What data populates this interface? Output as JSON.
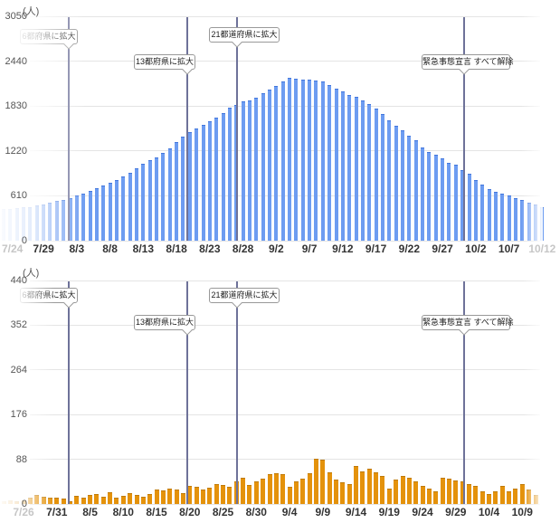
{
  "styles": {
    "grid_color": "#e4e4e4",
    "y_label_color": "#555555",
    "x_label_color": "#333333",
    "faded_label_color": "#c6c6c6",
    "marker_line_color": "#6e7299",
    "annotation_border_color": "#999999",
    "annotation_text_color": "#222222",
    "background_color": "#ffffff"
  },
  "chart_data": [
    {
      "type": "bar",
      "unit": "(人)",
      "ylim": [
        0,
        3050
      ],
      "y_ticks": [
        0,
        610,
        1220,
        1830,
        2440,
        3050
      ],
      "grid": true,
      "bar_color": "#6d9cf1",
      "bar_edge_color": "#4377dd",
      "x_tick_labels": [
        "7/24",
        "7/29",
        "8/3",
        "8/8",
        "8/13",
        "8/18",
        "8/23",
        "8/28",
        "9/2",
        "9/7",
        "9/12",
        "9/17",
        "9/22",
        "9/27",
        "10/2",
        "10/7",
        "10/12"
      ],
      "faded_tick_indexes": [
        0,
        16
      ],
      "categories": [
        "7/23",
        "7/24",
        "7/25",
        "7/26",
        "7/27",
        "7/28",
        "7/29",
        "7/30",
        "7/31",
        "8/1",
        "8/2",
        "8/3",
        "8/4",
        "8/5",
        "8/6",
        "8/7",
        "8/8",
        "8/9",
        "8/10",
        "8/11",
        "8/12",
        "8/13",
        "8/14",
        "8/15",
        "8/16",
        "8/17",
        "8/18",
        "8/19",
        "8/20",
        "8/21",
        "8/22",
        "8/23",
        "8/24",
        "8/25",
        "8/26",
        "8/27",
        "8/28",
        "8/29",
        "8/30",
        "8/31",
        "9/1",
        "9/2",
        "9/3",
        "9/4",
        "9/5",
        "9/6",
        "9/7",
        "9/8",
        "9/9",
        "9/10",
        "9/11",
        "9/12",
        "9/13",
        "9/14",
        "9/15",
        "9/16",
        "9/17",
        "9/18",
        "9/19",
        "9/20",
        "9/21",
        "9/22",
        "9/23",
        "9/24",
        "9/25",
        "9/26",
        "9/27",
        "9/28",
        "9/29",
        "9/30",
        "10/1",
        "10/2",
        "10/3",
        "10/4",
        "10/5",
        "10/6",
        "10/7",
        "10/8",
        "10/9",
        "10/10",
        "10/11",
        "10/12"
      ],
      "values": [
        430,
        435,
        442,
        450,
        460,
        475,
        495,
        515,
        540,
        557,
        572,
        615,
        640,
        672,
        715,
        755,
        790,
        825,
        870,
        925,
        980,
        1040,
        1090,
        1135,
        1190,
        1255,
        1340,
        1415,
        1470,
        1520,
        1575,
        1620,
        1670,
        1740,
        1805,
        1845,
        1890,
        1912,
        1945,
        2000,
        2050,
        2100,
        2165,
        2210,
        2205,
        2190,
        2195,
        2175,
        2160,
        2110,
        2065,
        2030,
        1985,
        1950,
        1905,
        1858,
        1790,
        1725,
        1640,
        1565,
        1500,
        1430,
        1360,
        1262,
        1205,
        1165,
        1115,
        1062,
        1030,
        965,
        910,
        830,
        760,
        700,
        665,
        640,
        610,
        580,
        550,
        520,
        490,
        460
      ],
      "annotations": [
        {
          "label": "6都府県に拡大",
          "line_x": 76,
          "box": {
            "x": 22,
            "y": 32,
            "w": 64
          },
          "pointer_x": 76
        },
        {
          "label": "13都府県に拡大",
          "line_x": 207,
          "box": {
            "x": 148,
            "y": 60,
            "w": 68
          },
          "pointer_x": 207
        },
        {
          "label": "21都道府県に拡大",
          "line_x": 262,
          "box": {
            "x": 231,
            "y": 30,
            "w": 78
          },
          "pointer_x": 262
        },
        {
          "label": "緊急事態宣言 すべて解除",
          "line_x": 513,
          "box": {
            "x": 466,
            "y": 60,
            "w": 98
          },
          "pointer_x": 513
        }
      ]
    },
    {
      "type": "bar",
      "unit": "(人)",
      "ylim": [
        0,
        440
      ],
      "y_ticks": [
        0,
        88,
        176,
        264,
        352,
        440
      ],
      "grid": true,
      "bar_color": "#e4920b",
      "bar_edge_color": "#bf7a06",
      "x_tick_labels": [
        "7/26",
        "7/31",
        "8/5",
        "8/10",
        "8/15",
        "8/20",
        "8/25",
        "8/30",
        "9/4",
        "9/9",
        "9/14",
        "9/19",
        "9/24",
        "9/29",
        "10/4",
        "10/9"
      ],
      "faded_tick_indexes": [
        0
      ],
      "categories": [
        "7/23",
        "7/24",
        "7/25",
        "7/26",
        "7/27",
        "7/28",
        "7/29",
        "7/30",
        "7/31",
        "8/1",
        "8/2",
        "8/3",
        "8/4",
        "8/5",
        "8/6",
        "8/7",
        "8/8",
        "8/9",
        "8/10",
        "8/11",
        "8/12",
        "8/13",
        "8/14",
        "8/15",
        "8/16",
        "8/17",
        "8/18",
        "8/19",
        "8/20",
        "8/21",
        "8/22",
        "8/23",
        "8/24",
        "8/25",
        "8/26",
        "8/27",
        "8/28",
        "8/29",
        "8/30",
        "8/31",
        "9/1",
        "9/2",
        "9/3",
        "9/4",
        "9/5",
        "9/6",
        "9/7",
        "9/8",
        "9/9",
        "9/10",
        "9/11",
        "9/12",
        "9/13",
        "9/14",
        "9/15",
        "9/16",
        "9/17",
        "9/18",
        "9/19",
        "9/20",
        "9/21",
        "9/22",
        "9/23",
        "9/24",
        "9/25",
        "9/26",
        "9/27",
        "9/28",
        "9/29",
        "9/30",
        "10/1",
        "10/2",
        "10/3",
        "10/4",
        "10/5",
        "10/6",
        "10/7",
        "10/8",
        "10/9",
        "10/10",
        "10/11"
      ],
      "values": [
        5,
        7,
        6,
        8,
        12,
        18,
        15,
        13,
        12,
        10,
        6,
        16,
        12,
        18,
        20,
        14,
        24,
        12,
        16,
        22,
        18,
        15,
        20,
        28,
        26,
        30,
        28,
        22,
        35,
        33,
        28,
        32,
        40,
        38,
        34,
        45,
        52,
        38,
        44,
        50,
        58,
        61,
        59,
        33,
        44,
        49,
        60,
        89,
        87,
        62,
        48,
        42,
        40,
        74,
        64,
        69,
        62,
        56,
        30,
        48,
        55,
        52,
        44,
        36,
        30,
        25,
        52,
        50,
        46,
        44,
        40,
        35,
        25,
        20,
        25,
        35,
        25,
        30,
        40,
        28,
        18
      ],
      "annotations": [
        {
          "label": "6都府県に拡大",
          "line_x": 76,
          "box": {
            "x": 22,
            "y": 318,
            "w": 64
          },
          "pointer_x": 76
        },
        {
          "label": "13都府県に拡大",
          "line_x": 207,
          "box": {
            "x": 148,
            "y": 348,
            "w": 68
          },
          "pointer_x": 207
        },
        {
          "label": "21都道府県に拡大",
          "line_x": 262,
          "box": {
            "x": 231,
            "y": 318,
            "w": 78
          },
          "pointer_x": 262
        },
        {
          "label": "緊急事態宣言 すべて解除",
          "line_x": 513,
          "box": {
            "x": 466,
            "y": 348,
            "w": 98
          },
          "pointer_x": 513
        }
      ]
    }
  ]
}
